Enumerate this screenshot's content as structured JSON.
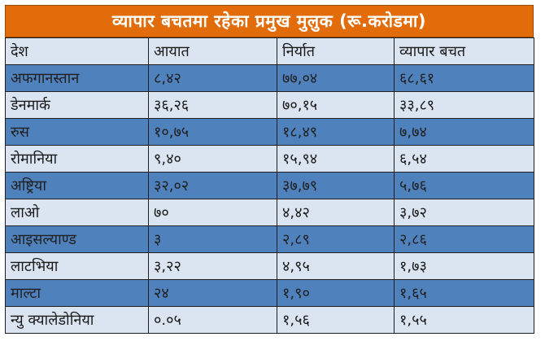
{
  "title": "व्यापार बचतमा रहेका प्रमुख मुलुक (रू.करोडमा)",
  "headers": [
    "देश",
    "आयात",
    "निर्यात",
    "व्यापार बचत"
  ],
  "rows": [
    [
      "अफगानस्तान",
      "८,४२",
      "७७,०४",
      "६८,६१"
    ],
    [
      "डेनमार्क",
      "३६,२६",
      "७०,१५",
      "३३,८९"
    ],
    [
      "रुस",
      "१०,७५",
      "१८,४९",
      "७,७४"
    ],
    [
      "रोमानिया",
      "९,४०",
      "१५,९४",
      "६,५४"
    ],
    [
      "अष्ट्रिया",
      "३२,०२",
      "३७,७९",
      "५,७६"
    ],
    [
      "लाओ",
      "७०",
      "४,४२",
      "३,७२"
    ],
    [
      "आइसल्याण्ड",
      "३",
      "२,८९",
      "२,८६"
    ],
    [
      "लाटभिया",
      "३,२२",
      "४,९५",
      "१,७३"
    ],
    [
      "माल्टा",
      "२४",
      "१,९०",
      "१,६५"
    ],
    [
      "न्यु क्यालेडोनिया",
      "०.०५",
      "१,५६",
      "१,५५"
    ]
  ],
  "colors": {
    "title_bg": "#e26b0a",
    "band_dark": "#4f81bd",
    "band_light": "#dbe5f1"
  }
}
